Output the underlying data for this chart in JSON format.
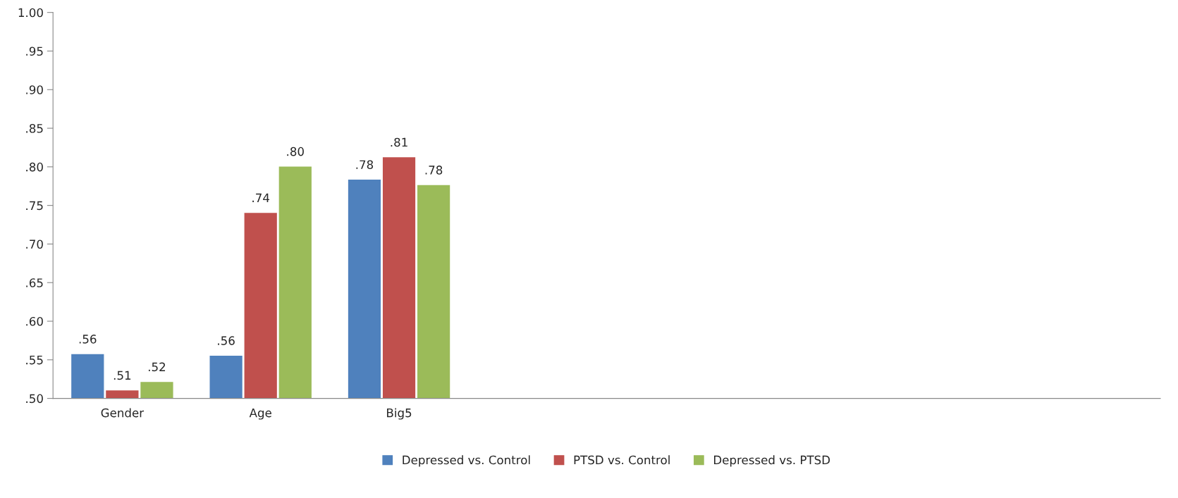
{
  "chart_data": {
    "type": "bar",
    "categories": [
      "Gender",
      "Age",
      "Big5",
      null,
      null,
      null,
      null,
      null
    ],
    "series": [
      {
        "name": "Depressed vs. Control",
        "color": "#4f81bd",
        "values": [
          0.558,
          0.556,
          0.784,
          null,
          null,
          null,
          null,
          null
        ],
        "value_labels": [
          ".56",
          ".56",
          ".78",
          null,
          null,
          null,
          null,
          null
        ]
      },
      {
        "name": "PTSD vs. Control",
        "color": "#c0504d",
        "values": [
          0.511,
          0.741,
          0.813,
          null,
          null,
          null,
          null,
          null
        ],
        "value_labels": [
          ".51",
          ".74",
          ".81",
          null,
          null,
          null,
          null,
          null
        ]
      },
      {
        "name": "Depressed vs. PTSD",
        "color": "#9bbb59",
        "values": [
          0.522,
          0.801,
          0.777,
          null,
          null,
          null,
          null,
          null
        ],
        "value_labels": [
          ".52",
          ".80",
          ".78",
          null,
          null,
          null,
          null,
          null
        ]
      }
    ],
    "ylim": [
      0.5,
      1.0
    ],
    "yticks": [
      {
        "value": 0.5,
        "label": ".50"
      },
      {
        "value": 0.55,
        "label": ".55"
      },
      {
        "value": 0.6,
        "label": ".60"
      },
      {
        "value": 0.65,
        "label": ".65"
      },
      {
        "value": 0.7,
        "label": ".70"
      },
      {
        "value": 0.75,
        "label": ".75"
      },
      {
        "value": 0.8,
        "label": ".80"
      },
      {
        "value": 0.85,
        "label": ".85"
      },
      {
        "value": 0.9,
        "label": ".90"
      },
      {
        "value": 0.95,
        "label": ".95"
      },
      {
        "value": 1.0,
        "label": "1.00"
      }
    ],
    "grid": false,
    "legend": "bottom"
  }
}
